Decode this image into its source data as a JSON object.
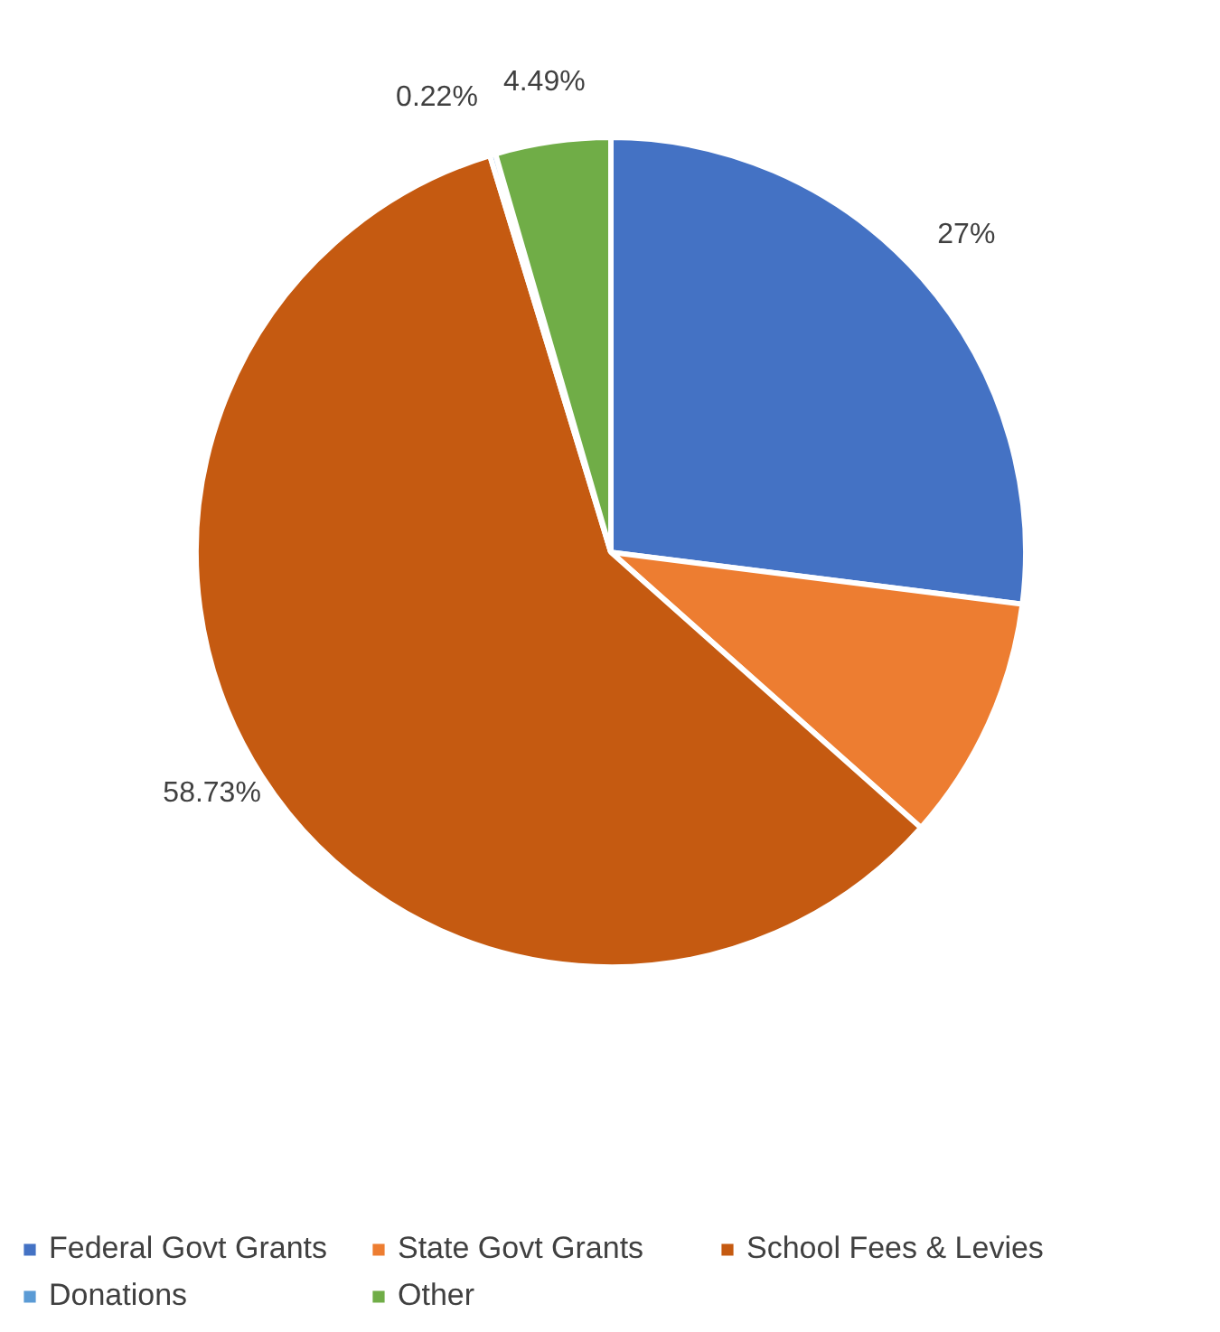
{
  "chart_data": {
    "type": "pie",
    "categories": [
      "Federal Govt Grants",
      "State Govt Grants",
      "School Fees & Levies",
      "Donations",
      "Other"
    ],
    "values": [
      27,
      9.56,
      58.73,
      0.22,
      4.49
    ],
    "colors": [
      "#4472c4",
      "#ed7d31",
      "#c55a11",
      "#5b9bd5",
      "#70ad47"
    ],
    "value_labels": [
      "27%",
      null,
      "58.73%",
      "0.22%",
      "4.49%"
    ],
    "legend": "bottom"
  }
}
